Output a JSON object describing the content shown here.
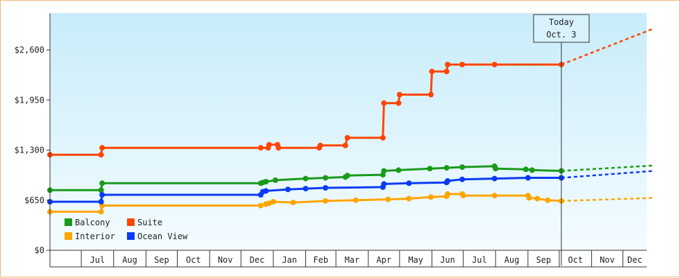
{
  "chart_data": {
    "type": "line",
    "title": "",
    "xlabel": "",
    "ylabel": "",
    "y_ticks": [
      "$0",
      "$650",
      "$1,300",
      "$1,950",
      "$2,600"
    ],
    "ylim": [
      0,
      2600
    ],
    "x_months": [
      "Jul",
      "Aug",
      "Sep",
      "Oct",
      "Nov",
      "Dec",
      "Jan",
      "Feb",
      "Mar",
      "Apr",
      "May",
      "Jun",
      "Jul",
      "Aug",
      "Sep",
      "Oct",
      "Nov",
      "Dec"
    ],
    "today": {
      "line1": "Today",
      "line2": "Oct. 3"
    },
    "legend_position": "bottom-left",
    "grid": false,
    "series": [
      {
        "name": "Balcony",
        "color": "#1a9a1a",
        "points": [
          [
            "2023-06-01",
            780
          ],
          [
            "2023-07-20",
            780
          ],
          [
            "2023-07-21",
            870
          ],
          [
            "2023-12-20",
            870
          ],
          [
            "2023-12-22",
            880
          ],
          [
            "2023-12-25",
            890
          ],
          [
            "2024-01-03",
            910
          ],
          [
            "2024-02-01",
            930
          ],
          [
            "2024-02-20",
            940
          ],
          [
            "2024-03-10",
            950
          ],
          [
            "2024-03-12",
            970
          ],
          [
            "2024-04-15",
            980
          ],
          [
            "2024-04-16",
            1030
          ],
          [
            "2024-04-30",
            1040
          ],
          [
            "2024-05-30",
            1060
          ],
          [
            "2024-06-15",
            1070
          ],
          [
            "2024-06-30",
            1080
          ],
          [
            "2024-07-31",
            1090
          ],
          [
            "2024-08-01",
            1060
          ],
          [
            "2024-08-30",
            1050
          ],
          [
            "2024-09-05",
            1040
          ],
          [
            "2024-10-03",
            1030
          ]
        ],
        "forecast": [
          [
            "2024-10-03",
            1030
          ],
          [
            "2024-12-31",
            1100
          ]
        ]
      },
      {
        "name": "Suite",
        "color": "#ff4500",
        "points": [
          [
            "2023-06-01",
            1240
          ],
          [
            "2023-07-20",
            1240
          ],
          [
            "2023-07-21",
            1330
          ],
          [
            "2023-12-20",
            1330
          ],
          [
            "2023-12-27",
            1330
          ],
          [
            "2023-12-28",
            1370
          ],
          [
            "2024-01-05",
            1370
          ],
          [
            "2024-01-06",
            1330
          ],
          [
            "2024-02-14",
            1330
          ],
          [
            "2024-02-15",
            1360
          ],
          [
            "2024-03-10",
            1360
          ],
          [
            "2024-03-12",
            1460
          ],
          [
            "2024-04-15",
            1460
          ],
          [
            "2024-04-16",
            1910
          ],
          [
            "2024-04-30",
            1910
          ],
          [
            "2024-05-01",
            2020
          ],
          [
            "2024-05-31",
            2020
          ],
          [
            "2024-06-01",
            2320
          ],
          [
            "2024-06-15",
            2320
          ],
          [
            "2024-06-16",
            2410
          ],
          [
            "2024-06-30",
            2410
          ],
          [
            "2024-07-31",
            2410
          ],
          [
            "2024-10-03",
            2410
          ]
        ],
        "forecast": [
          [
            "2024-10-03",
            2410
          ],
          [
            "2024-12-31",
            2880
          ]
        ]
      },
      {
        "name": "Interior",
        "color": "#ffa500",
        "points": [
          [
            "2023-06-01",
            500
          ],
          [
            "2023-07-20",
            500
          ],
          [
            "2023-07-21",
            580
          ],
          [
            "2023-12-20",
            580
          ],
          [
            "2023-12-25",
            600
          ],
          [
            "2023-12-28",
            610
          ],
          [
            "2024-01-01",
            630
          ],
          [
            "2024-01-20",
            620
          ],
          [
            "2024-02-20",
            640
          ],
          [
            "2024-03-20",
            650
          ],
          [
            "2024-04-20",
            660
          ],
          [
            "2024-05-10",
            670
          ],
          [
            "2024-05-31",
            690
          ],
          [
            "2024-06-15",
            700
          ],
          [
            "2024-06-16",
            730
          ],
          [
            "2024-06-30",
            730
          ],
          [
            "2024-07-01",
            710
          ],
          [
            "2024-07-31",
            710
          ],
          [
            "2024-09-01",
            710
          ],
          [
            "2024-09-02",
            680
          ],
          [
            "2024-09-10",
            670
          ],
          [
            "2024-09-20",
            650
          ],
          [
            "2024-10-03",
            640
          ]
        ],
        "forecast": [
          [
            "2024-10-03",
            640
          ],
          [
            "2024-12-31",
            680
          ]
        ]
      },
      {
        "name": "Ocean View",
        "color": "#0a3af5",
        "points": [
          [
            "2023-06-01",
            630
          ],
          [
            "2023-07-20",
            630
          ],
          [
            "2023-07-21",
            720
          ],
          [
            "2023-12-20",
            720
          ],
          [
            "2023-12-22",
            760
          ],
          [
            "2023-12-25",
            770
          ],
          [
            "2024-01-15",
            790
          ],
          [
            "2024-02-01",
            800
          ],
          [
            "2024-02-20",
            810
          ],
          [
            "2024-04-15",
            820
          ],
          [
            "2024-04-16",
            860
          ],
          [
            "2024-05-10",
            870
          ],
          [
            "2024-06-15",
            880
          ],
          [
            "2024-06-16",
            900
          ],
          [
            "2024-06-30",
            920
          ],
          [
            "2024-07-31",
            930
          ],
          [
            "2024-09-01",
            940
          ],
          [
            "2024-10-03",
            940
          ]
        ],
        "forecast": [
          [
            "2024-10-03",
            940
          ],
          [
            "2024-12-31",
            1030
          ]
        ]
      }
    ]
  }
}
